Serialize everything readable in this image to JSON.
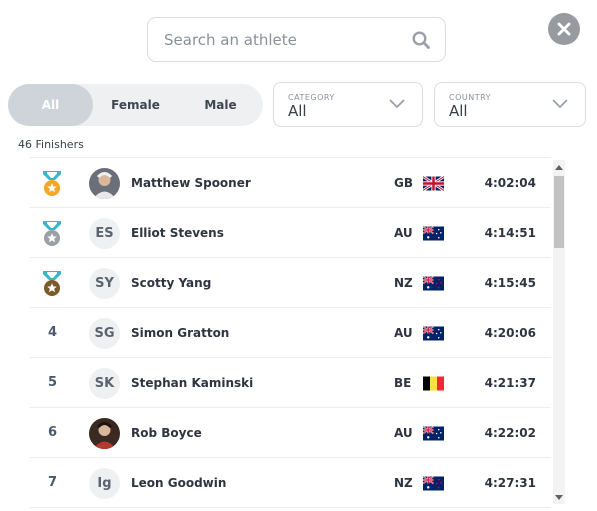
{
  "search": {
    "placeholder": "Search an athlete",
    "icon": "search-icon"
  },
  "close": {
    "icon": "close-icon"
  },
  "gender_filter": {
    "options": [
      "All",
      "Female",
      "Male"
    ],
    "selected": "All"
  },
  "category": {
    "label": "CATEGORY",
    "value": "All"
  },
  "country_filter": {
    "label": "COUNTRY",
    "value": "All"
  },
  "finishers_label": "46 Finishers",
  "athletes": [
    {
      "rank": "",
      "medal": "gold",
      "initials": "",
      "photo": true,
      "name": "Matthew Spooner",
      "country": "GB",
      "flag": "gb-flag",
      "time": "4:02:04"
    },
    {
      "rank": "",
      "medal": "silver",
      "initials": "ES",
      "photo": false,
      "name": "Elliot Stevens",
      "country": "AU",
      "flag": "au-flag",
      "time": "4:14:51"
    },
    {
      "rank": "",
      "medal": "bronze",
      "initials": "SY",
      "photo": false,
      "name": "Scotty Yang",
      "country": "NZ",
      "flag": "nz-flag",
      "time": "4:15:45"
    },
    {
      "rank": "4",
      "medal": "",
      "initials": "SG",
      "photo": false,
      "name": "Simon Gratton",
      "country": "AU",
      "flag": "au-flag",
      "time": "4:20:06"
    },
    {
      "rank": "5",
      "medal": "",
      "initials": "SK",
      "photo": false,
      "name": "Stephan Kaminski",
      "country": "BE",
      "flag": "be-flag",
      "time": "4:21:37"
    },
    {
      "rank": "6",
      "medal": "",
      "initials": "",
      "photo": true,
      "name": "Rob Boyce",
      "country": "AU",
      "flag": "au-flag",
      "time": "4:22:02"
    },
    {
      "rank": "7",
      "medal": "",
      "initials": "Ig",
      "photo": false,
      "name": "Leon Goodwin",
      "country": "NZ",
      "flag": "nz-flag",
      "time": "4:27:31"
    }
  ],
  "colors": {
    "gold": "#f5a623",
    "silver": "#9aa0a6",
    "bronze": "#7a5a2a",
    "ribbon": "#35b6c9",
    "toggle_active": "#cfd4db"
  }
}
